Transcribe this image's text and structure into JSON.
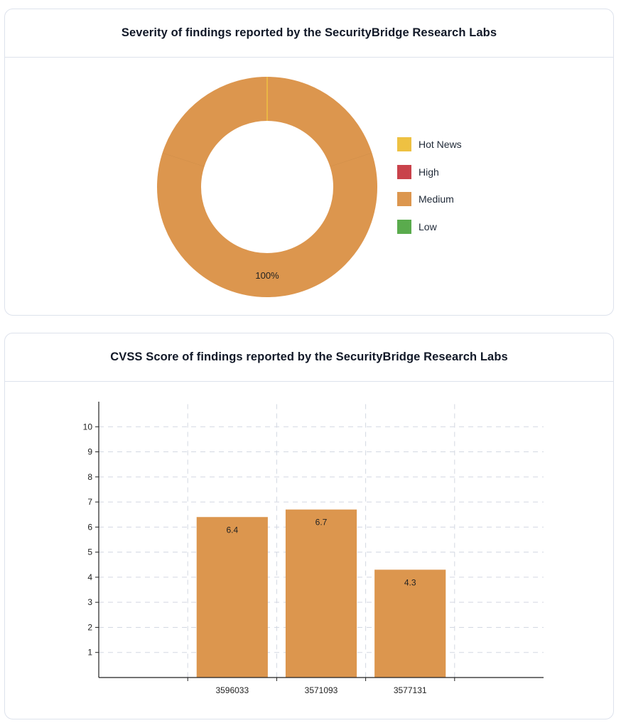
{
  "severity_card": {
    "title": "Severity of findings reported by the SecurityBridge Research Labs"
  },
  "cvss_card": {
    "title": "CVSS Score of findings reported by the SecurityBridge Research Labs"
  },
  "chart_data": [
    {
      "type": "pie",
      "title": "Severity of findings reported by the SecurityBridge Research Labs",
      "donut": true,
      "categories": [
        "Hot News",
        "High",
        "Medium",
        "Low"
      ],
      "values": [
        0,
        0,
        100,
        0
      ],
      "colors": [
        "#eec142",
        "#c9424b",
        "#dc964e",
        "#5aab4d"
      ],
      "slice_labels": [
        "",
        "",
        "100%",
        ""
      ],
      "legend_position": "right"
    },
    {
      "type": "bar",
      "title": "CVSS Score of findings reported by the SecurityBridge Research Labs",
      "categories": [
        "",
        "3596033",
        "3571093",
        "3577131",
        ""
      ],
      "values": [
        null,
        6.4,
        6.7,
        4.3,
        null
      ],
      "data_labels": [
        "",
        "6.4",
        "6.7",
        "4.3",
        ""
      ],
      "yticks": [
        1,
        2,
        3,
        4,
        5,
        6,
        7,
        8,
        9,
        10
      ],
      "ylim": [
        0,
        11
      ],
      "color": "#dc964e",
      "grid": true,
      "xlabel": "",
      "ylabel": ""
    }
  ]
}
